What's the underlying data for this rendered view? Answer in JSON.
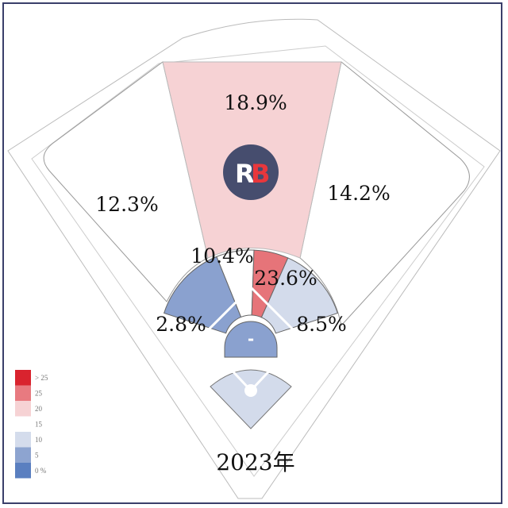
{
  "chart_data": {
    "type": "heatmap",
    "title": "2023年",
    "zones": [
      {
        "zone": "left-field",
        "value": "12.3%",
        "color": "#ffffff"
      },
      {
        "zone": "center-field",
        "value": "18.9%",
        "color": "#f6d2d4"
      },
      {
        "zone": "right-field",
        "value": "14.2%",
        "color": "#ffffff"
      },
      {
        "zone": "infield-left",
        "value": "2.8%",
        "color": "#8aa1cf"
      },
      {
        "zone": "infield-center-left",
        "value": "10.4%",
        "color": "#ffffff"
      },
      {
        "zone": "infield-center-right",
        "value": "23.6%",
        "color": "#e67479"
      },
      {
        "zone": "infield-right",
        "value": "8.5%",
        "color": "#d3dbeb"
      },
      {
        "zone": "pitcher",
        "value": "-",
        "color": "#8aa1cf"
      },
      {
        "zone": "home",
        "value": "",
        "color": "#d3dbeb"
      }
    ],
    "legend": [
      {
        "label": "> 25",
        "color": "#d9232e"
      },
      {
        "label": "25",
        "color": "#e87a80"
      },
      {
        "label": "20",
        "color": "#f6d2d4"
      },
      {
        "label": "15",
        "color": "#ffffff"
      },
      {
        "label": "10",
        "color": "#d4dcec"
      },
      {
        "label": "5",
        "color": "#8da4d0"
      },
      {
        "label": "0 %",
        "color": "#5a7fc0"
      }
    ]
  },
  "logo": {
    "text": "RB",
    "bg": "#464d6e",
    "accent": "#e8373c"
  }
}
